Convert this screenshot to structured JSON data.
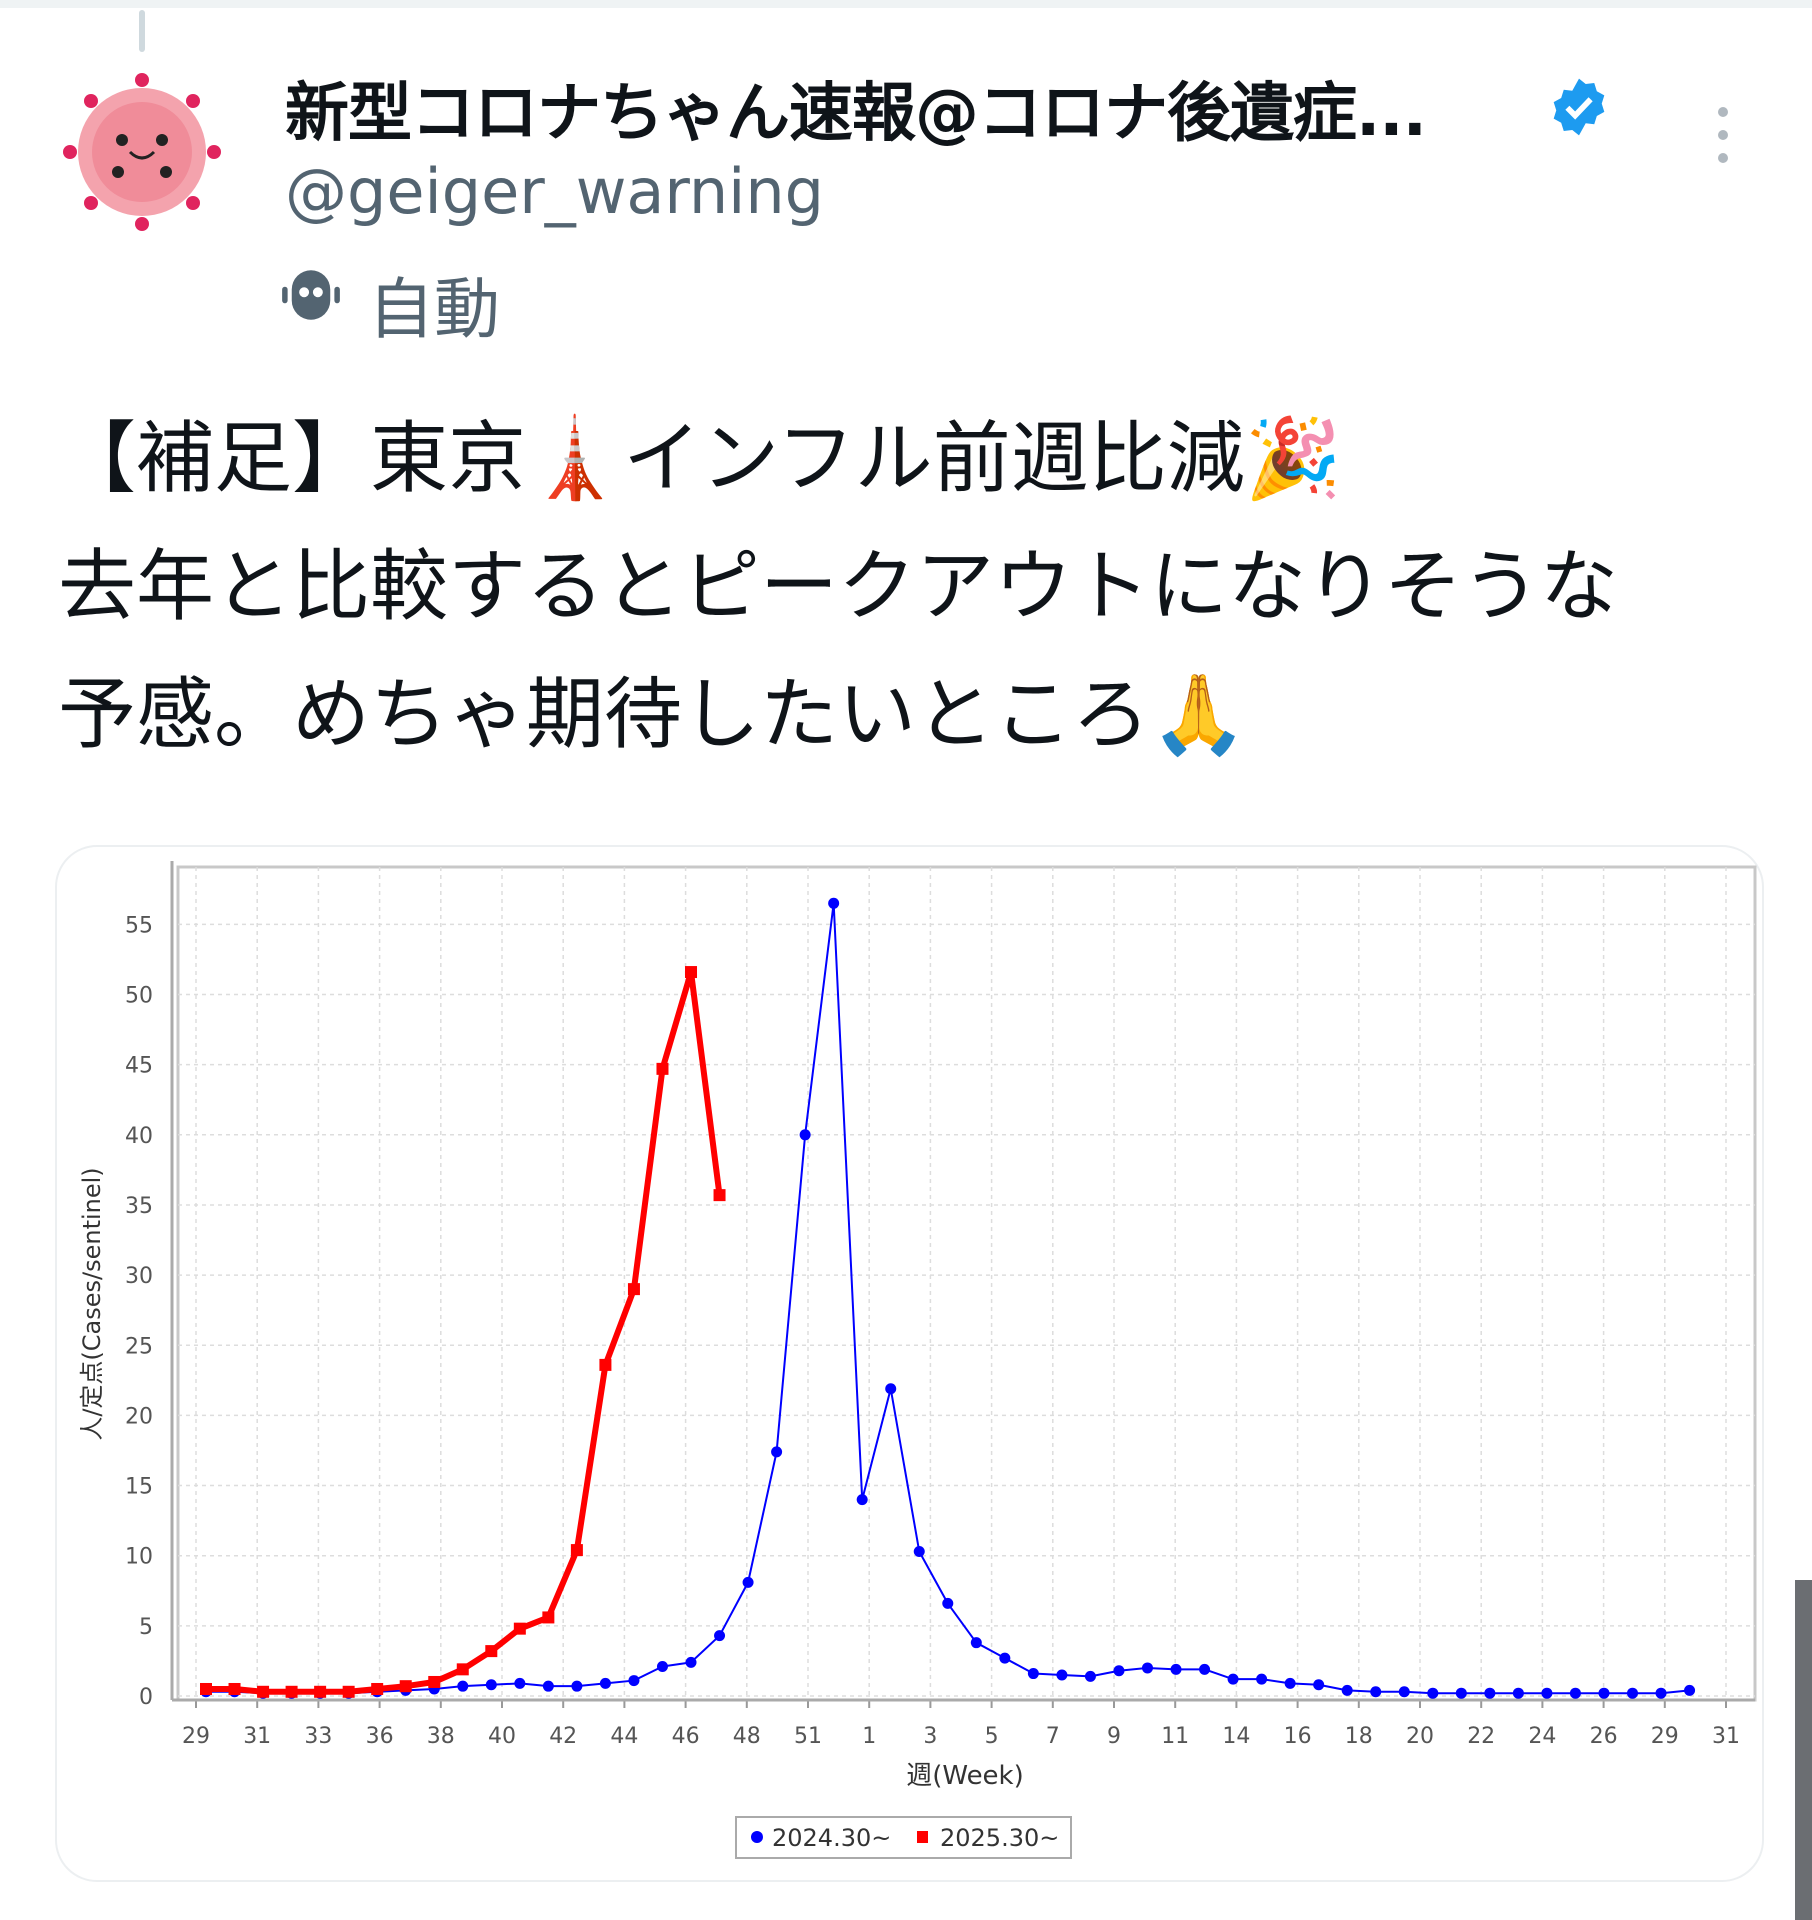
{
  "post": {
    "display_name": "新型コロナちゃん速報@コロナ後遺症...",
    "handle": "@geiger_warning",
    "automated_label": "自動",
    "icons": {
      "avatar": "virus-mascot-avatar",
      "verified": "verified-badge-icon",
      "automated": "robot-icon",
      "more": "more-vertical-icon"
    },
    "text_lines": [
      "【補足】東京🗼インフル前週比減🎉",
      "去年と比較するとピークアウトになりそうな",
      "予感。めちゃ期待したいところ🙏"
    ]
  },
  "colors": {
    "verified": "#1d9bf0",
    "series_2024": "#0000ff",
    "series_2025": "#ff0000",
    "muted_text": "#536471"
  },
  "chart_data": {
    "type": "line",
    "xlabel": "週(Week)",
    "ylabel": "人/定点(Cases/sentinel)",
    "ylim": [
      0,
      58
    ],
    "yticks": [
      0,
      5,
      10,
      15,
      20,
      25,
      30,
      35,
      40,
      45,
      50,
      55
    ],
    "xtick_labels": [
      "29",
      "31",
      "33",
      "36",
      "38",
      "40",
      "42",
      "44",
      "46",
      "48",
      "51",
      "1",
      "3",
      "5",
      "7",
      "9",
      "11",
      "14",
      "16",
      "18",
      "20",
      "22",
      "24",
      "26",
      "29",
      "31"
    ],
    "grid": true,
    "legend_position": "bottom",
    "series": [
      {
        "name": "2024.30~",
        "color": "#0000ff",
        "marker": "circle",
        "weeks": [
          30,
          31,
          32,
          33,
          34,
          35,
          36,
          37,
          38,
          39,
          40,
          41,
          42,
          43,
          44,
          45,
          46,
          47,
          48,
          49,
          50,
          51,
          52,
          1,
          2,
          3,
          4,
          5,
          6,
          7,
          8,
          9,
          10,
          11,
          12,
          13,
          14,
          15,
          16,
          17,
          18,
          19,
          20,
          21,
          22,
          23,
          24,
          25,
          26,
          27,
          28,
          29,
          30
        ],
        "values": [
          0.3,
          0.3,
          0.2,
          0.2,
          0.2,
          0.2,
          0.3,
          0.4,
          0.5,
          0.7,
          0.8,
          0.9,
          0.7,
          0.7,
          0.9,
          1.1,
          2.1,
          2.4,
          4.3,
          8.1,
          17.4,
          40.0,
          56.5,
          14.0,
          21.9,
          10.3,
          6.6,
          3.8,
          2.7,
          1.6,
          1.5,
          1.4,
          1.8,
          2.0,
          1.9,
          1.9,
          1.2,
          1.2,
          0.9,
          0.8,
          0.4,
          0.3,
          0.3,
          0.2,
          0.2,
          0.2,
          0.2,
          0.2,
          0.2,
          0.2,
          0.2,
          0.2,
          0.4
        ]
      },
      {
        "name": "2025.30~",
        "color": "#ff0000",
        "marker": "square",
        "weeks": [
          30,
          31,
          32,
          33,
          34,
          35,
          36,
          37,
          38,
          39,
          40,
          41,
          42,
          43,
          44,
          45,
          46,
          47,
          48
        ],
        "values": [
          0.5,
          0.5,
          0.3,
          0.3,
          0.3,
          0.3,
          0.5,
          0.7,
          1.0,
          1.9,
          3.2,
          4.8,
          5.6,
          10.4,
          23.6,
          29.0,
          44.7,
          51.6,
          35.7
        ]
      }
    ]
  }
}
